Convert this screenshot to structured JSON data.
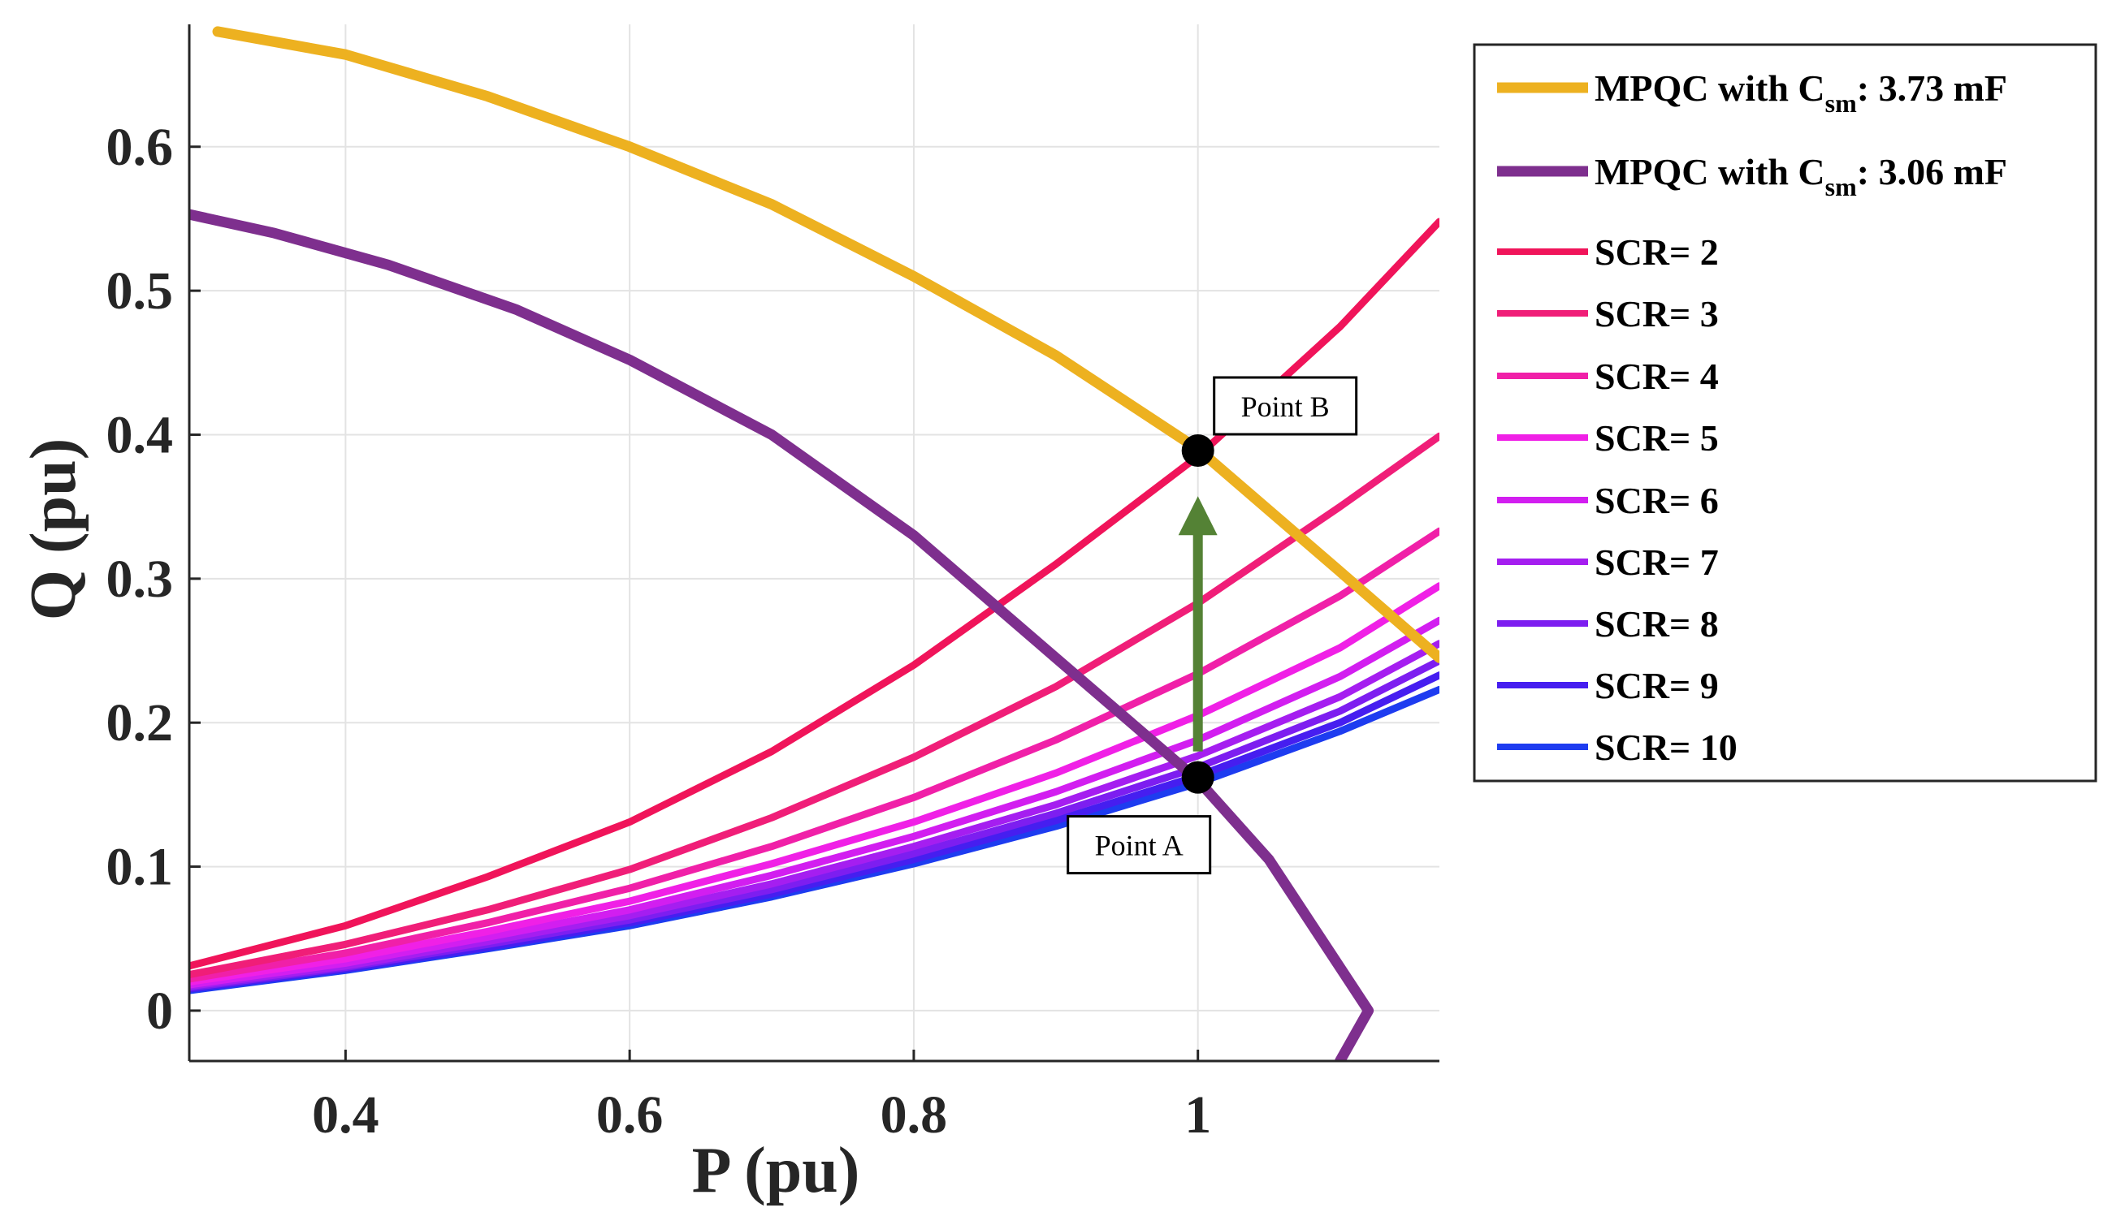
{
  "chart_data": {
    "type": "line",
    "title": "",
    "xlabel": "P (pu)",
    "ylabel": "Q (pu)",
    "xlim": [
      0.29,
      1.17
    ],
    "ylim": [
      -0.035,
      0.685
    ],
    "xticks": [
      0.4,
      0.6,
      0.8,
      1.0
    ],
    "xtick_labels": [
      "0.4",
      "0.6",
      "0.8",
      "1"
    ],
    "yticks": [
      0,
      0.1,
      0.2,
      0.3,
      0.4,
      0.5,
      0.6
    ],
    "ytick_labels": [
      "0",
      "0.1",
      "0.2",
      "0.3",
      "0.4",
      "0.5",
      "0.6"
    ],
    "grid": true,
    "legend_position": "outside-right",
    "mpqc_series": [
      {
        "name": "MPQC with C",
        "sub": "sm",
        "suffix": ": 3.73 mF",
        "color": "#EDB120",
        "x": [
          0.31,
          0.4,
          0.5,
          0.6,
          0.7,
          0.8,
          0.9,
          1.0,
          1.1,
          1.17
        ],
        "y": [
          0.68,
          0.664,
          0.635,
          0.6,
          0.56,
          0.51,
          0.455,
          0.39,
          0.305,
          0.245
        ]
      },
      {
        "name": "MPQC with C",
        "sub": "sm",
        "suffix": ": 3.06 mF",
        "color": "#7E2F8E",
        "x": [
          0.29,
          0.35,
          0.43,
          0.52,
          0.6,
          0.7,
          0.8,
          0.9,
          1.0,
          1.05,
          1.1,
          1.12,
          1.1
        ],
        "y": [
          0.553,
          0.54,
          0.518,
          0.487,
          0.452,
          0.4,
          0.33,
          0.245,
          0.16,
          0.105,
          0.03,
          0.0,
          -0.035
        ]
      }
    ],
    "scr_series": [
      {
        "name": "SCR= 2",
        "color": "#F0145A",
        "x": [
          0.29,
          0.4,
          0.5,
          0.6,
          0.7,
          0.8,
          0.9,
          1.0,
          1.1,
          1.17
        ],
        "y": [
          0.031,
          0.059,
          0.093,
          0.131,
          0.18,
          0.24,
          0.31,
          0.385,
          0.475,
          0.548
        ]
      },
      {
        "name": "SCR= 3",
        "color": "#F01E78",
        "x": [
          0.29,
          0.4,
          0.5,
          0.6,
          0.7,
          0.8,
          0.9,
          1.0,
          1.1,
          1.17
        ],
        "y": [
          0.025,
          0.046,
          0.07,
          0.098,
          0.134,
          0.176,
          0.225,
          0.283,
          0.35,
          0.399
        ]
      },
      {
        "name": "SCR= 4",
        "color": "#F020A8",
        "x": [
          0.29,
          0.4,
          0.5,
          0.6,
          0.7,
          0.8,
          0.9,
          1.0,
          1.1,
          1.17
        ],
        "y": [
          0.022,
          0.04,
          0.061,
          0.085,
          0.114,
          0.148,
          0.188,
          0.234,
          0.288,
          0.333
        ]
      },
      {
        "name": "SCR= 5",
        "color": "#F020E6",
        "x": [
          0.29,
          0.4,
          0.5,
          0.6,
          0.7,
          0.8,
          0.9,
          1.0,
          1.1,
          1.17
        ],
        "y": [
          0.02,
          0.036,
          0.055,
          0.076,
          0.102,
          0.131,
          0.165,
          0.205,
          0.252,
          0.295
        ]
      },
      {
        "name": "SCR= 6",
        "color": "#D21EF0",
        "x": [
          0.29,
          0.4,
          0.5,
          0.6,
          0.7,
          0.8,
          0.9,
          1.0,
          1.1,
          1.17
        ],
        "y": [
          0.018,
          0.033,
          0.051,
          0.07,
          0.094,
          0.121,
          0.152,
          0.188,
          0.232,
          0.271
        ]
      },
      {
        "name": "SCR= 7",
        "color": "#A51EF0",
        "x": [
          0.29,
          0.4,
          0.5,
          0.6,
          0.7,
          0.8,
          0.9,
          1.0,
          1.1,
          1.17
        ],
        "y": [
          0.017,
          0.031,
          0.048,
          0.066,
          0.088,
          0.114,
          0.143,
          0.177,
          0.218,
          0.255
        ]
      },
      {
        "name": "SCR= 8",
        "color": "#7D1EF0",
        "x": [
          0.29,
          0.4,
          0.5,
          0.6,
          0.7,
          0.8,
          0.9,
          1.0,
          1.1,
          1.17
        ],
        "y": [
          0.016,
          0.03,
          0.046,
          0.063,
          0.084,
          0.109,
          0.137,
          0.169,
          0.208,
          0.243
        ]
      },
      {
        "name": "SCR= 9",
        "color": "#461EF0",
        "x": [
          0.29,
          0.4,
          0.5,
          0.6,
          0.7,
          0.8,
          0.9,
          1.0,
          1.1,
          1.17
        ],
        "y": [
          0.015,
          0.029,
          0.044,
          0.061,
          0.081,
          0.105,
          0.132,
          0.163,
          0.2,
          0.233
        ]
      },
      {
        "name": "SCR= 10",
        "color": "#1E3CF0",
        "x": [
          0.29,
          0.4,
          0.5,
          0.6,
          0.7,
          0.8,
          0.9,
          1.0,
          1.1,
          1.17
        ],
        "y": [
          0.014,
          0.028,
          0.043,
          0.059,
          0.079,
          0.102,
          0.128,
          0.158,
          0.194,
          0.223
        ]
      }
    ],
    "points": [
      {
        "name": "Point A",
        "x": 1.0,
        "y": 0.162,
        "label_position": "below-left"
      },
      {
        "name": "Point B",
        "x": 1.0,
        "y": 0.389,
        "label_position": "above-right"
      }
    ],
    "arrow": {
      "from": [
        1.0,
        0.18
      ],
      "to": [
        1.0,
        0.355
      ],
      "color": "#548235"
    }
  }
}
